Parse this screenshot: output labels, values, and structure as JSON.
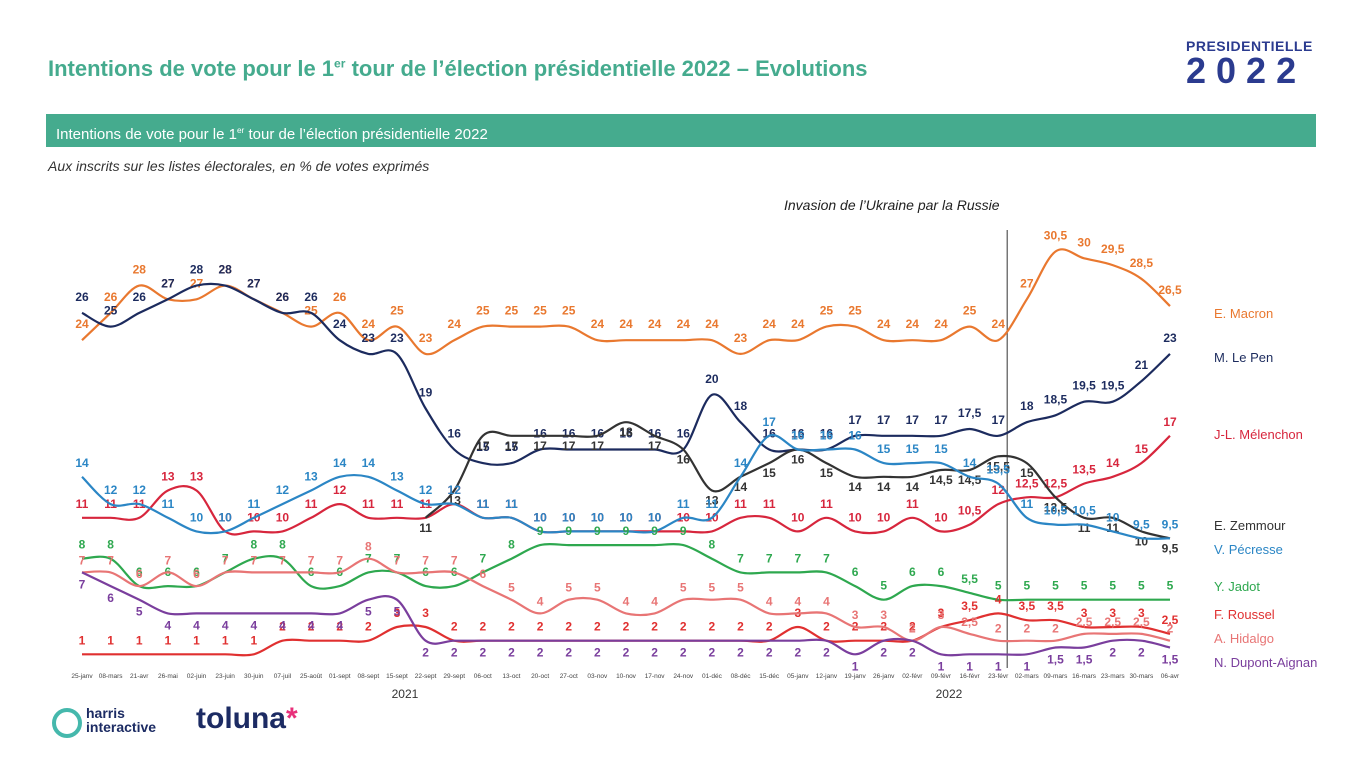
{
  "header": {
    "title_main": "Intentions de vote pour le 1",
    "title_sup": "er",
    "title_rest": " tour de l’élection présidentielle 2022 – Evolutions",
    "banner_main": "Intentions de vote pour le 1",
    "banner_sup": "er",
    "banner_rest": " tour de l’élection présidentielle 2022",
    "subtitle": "Aux inscrits sur les listes électorales, en % de votes exprimés",
    "logo_word": "PRESIDENTIELLE",
    "logo_year": "2022"
  },
  "footer": {
    "harris_line1": "harris",
    "harris_line2": "interactive",
    "toluna_text": "toluna",
    "toluna_star": "*"
  },
  "colors": {
    "accent": "#45ab8e",
    "macron": "#e9782f",
    "lepen": "#1c2b5e",
    "melenchon": "#d7263d",
    "zemmour": "#333333",
    "pecresse": "#2b86c5",
    "jadot": "#2ea84f",
    "roussel": "#e03030",
    "hidalgo": "#e87575",
    "dupont": "#7a3e9d"
  },
  "chart_data": {
    "type": "line",
    "title": "",
    "xlabel": "",
    "ylabel": "",
    "annotation": {
      "label": "Invasion de l’Ukraine par la Russie",
      "x": "23-févr"
    },
    "years": [
      {
        "label": "2021",
        "x": "15-sept"
      },
      {
        "label": "2022",
        "x": "09-févr"
      }
    ],
    "x": [
      "25-janv",
      "08-mars",
      "21-avr",
      "26-mai",
      "02-juin",
      "23-juin",
      "30-juin",
      "07-juil",
      "25-août",
      "01-sept",
      "08-sept",
      "15-sept",
      "22-sept",
      "29-sept",
      "06-oct",
      "13-oct",
      "20-oct",
      "27-oct",
      "03-nov",
      "10-nov",
      "17-nov",
      "24-nov",
      "01-déc",
      "08-déc",
      "15-déc",
      "05-janv",
      "12-janv",
      "19-janv",
      "26-janv",
      "02-févr",
      "09-févr",
      "16-févr",
      "23-févr",
      "02-mars",
      "09-mars",
      "16-mars",
      "23-mars",
      "30-mars",
      "06-avr"
    ],
    "series": [
      {
        "name": "E. Macron",
        "key": "macron",
        "values": [
          24,
          26,
          28,
          27,
          27,
          28,
          27,
          26,
          25,
          26,
          24,
          25,
          23,
          24,
          25,
          25,
          25,
          25,
          24,
          24,
          24,
          24,
          24,
          23,
          24,
          24,
          25,
          25,
          24,
          24,
          24,
          25,
          24,
          27,
          30.5,
          30,
          29.5,
          28.5,
          26.5
        ],
        "labels": [
          "24",
          "26",
          "28",
          "27",
          "27",
          "28",
          "27",
          "26",
          "25",
          "26",
          "24",
          "25",
          "23",
          "24",
          "25",
          "25",
          "25",
          "25",
          "24",
          "24",
          "24",
          "24",
          "24",
          "23",
          "24",
          "24",
          "25",
          "25",
          "24",
          "24",
          "24",
          "25",
          "24",
          "27",
          "30,5",
          "30",
          "29,5",
          "28,5",
          "26,5"
        ]
      },
      {
        "name": "M. Le Pen",
        "key": "lepen",
        "values": [
          26,
          25,
          26,
          27,
          28,
          28,
          27,
          26,
          26,
          24,
          23,
          23,
          19,
          16,
          15,
          15,
          16,
          16,
          16,
          16,
          16,
          16,
          20,
          18,
          16,
          16,
          16,
          17,
          17,
          17,
          17,
          17.5,
          17,
          18,
          18.5,
          19.5,
          19.5,
          21,
          23
        ],
        "labels": [
          "26",
          "25",
          "26",
          "27",
          "28",
          "28",
          "27",
          "26",
          "26",
          "24",
          "23",
          "23",
          "19",
          "16",
          "15",
          "15",
          "16",
          "16",
          "16",
          "16",
          "16",
          "16",
          "20",
          "18",
          "16",
          "16",
          "16",
          "17",
          "17",
          "17",
          "17",
          "17,5",
          "17",
          "18",
          "18,5",
          "19,5",
          "19,5",
          "21",
          "23"
        ]
      },
      {
        "name": "J-L. Mélenchon",
        "key": "melenchon",
        "values": [
          11,
          11,
          11,
          13,
          13,
          10,
          10,
          10,
          11,
          12,
          11,
          11,
          11,
          12,
          11,
          11,
          10,
          10,
          10,
          10,
          10,
          10,
          10,
          11,
          11,
          10,
          11,
          10,
          10,
          11,
          10,
          10.5,
          12,
          12.5,
          12.5,
          13.5,
          14,
          15,
          17
        ],
        "labels": [
          "11",
          "11",
          "11",
          "13",
          "13",
          "10",
          "10",
          "10",
          "11",
          "12",
          "11",
          "11",
          "11",
          "12",
          "11",
          "11",
          "10",
          "10",
          "10",
          "10",
          "10",
          "10",
          "10",
          "11",
          "11",
          "10",
          "11",
          "10",
          "10",
          "11",
          "10",
          "10,5",
          "12",
          "12,5",
          "12,5",
          "13,5",
          "14",
          "15",
          "17"
        ]
      },
      {
        "name": "E. Zemmour",
        "key": "zemmour",
        "values": [
          null,
          null,
          null,
          null,
          null,
          null,
          null,
          null,
          null,
          null,
          null,
          null,
          11,
          13,
          17,
          17,
          17,
          17,
          17,
          18,
          17,
          16,
          13,
          14,
          15,
          16,
          15,
          14,
          14,
          14,
          14.5,
          14.5,
          15.5,
          15,
          12.5,
          11,
          11,
          10,
          9.5
        ],
        "labels": [
          "",
          "",
          "",
          "",
          "",
          "",
          "",
          "",
          "",
          "",
          "",
          "",
          "11",
          "13",
          "17",
          "17",
          "17",
          "17",
          "17",
          "18",
          "17",
          "16",
          "13",
          "14",
          "15",
          "16",
          "15",
          "14",
          "14",
          "14",
          "14,5",
          "14,5",
          "15,5",
          "15",
          "12,5",
          "11",
          "11",
          "10",
          "9,5"
        ]
      },
      {
        "name": "V. Pécresse",
        "key": "pecresse",
        "values": [
          14,
          12,
          12,
          11,
          10,
          10,
          11,
          12,
          13,
          14,
          14,
          13,
          12,
          12,
          11,
          11,
          10,
          10,
          10,
          10,
          10,
          11,
          11,
          14,
          17,
          16,
          16,
          16,
          15,
          15,
          15,
          14,
          13.5,
          11,
          10.5,
          10.5,
          10,
          9.5,
          9.5
        ],
        "labels": [
          "14",
          "12",
          "12",
          "11",
          "10",
          "10",
          "11",
          "12",
          "13",
          "14",
          "14",
          "13",
          "12",
          "12",
          "11",
          "11",
          "10",
          "10",
          "10",
          "10",
          "10",
          "11",
          "11",
          "14",
          "17",
          "16",
          "16",
          "16",
          "15",
          "15",
          "15",
          "14",
          "13,5",
          "11",
          "10,5",
          "10,5",
          "10",
          "9,5",
          "9,5"
        ]
      },
      {
        "name": "Y. Jadot",
        "key": "jadot",
        "values": [
          8,
          8,
          6,
          6,
          6,
          7,
          8,
          8,
          6,
          6,
          7,
          7,
          6,
          6,
          7,
          8,
          9,
          9,
          9,
          9,
          9,
          9,
          8,
          7,
          7,
          7,
          7,
          6,
          5,
          6,
          6,
          5.5,
          5,
          5,
          5,
          5,
          5,
          5,
          5
        ],
        "labels": [
          "8",
          "8",
          "6",
          "6",
          "6",
          "7",
          "8",
          "8",
          "6",
          "6",
          "7",
          "7",
          "6",
          "6",
          "7",
          "8",
          "9",
          "9",
          "9",
          "9",
          "9",
          "9",
          "8",
          "7",
          "7",
          "7",
          "7",
          "6",
          "5",
          "6",
          "6",
          "5,5",
          "5",
          "5",
          "5",
          "5",
          "5",
          "5",
          "5"
        ]
      },
      {
        "name": "F. Roussel",
        "key": "roussel",
        "values": [
          1,
          1,
          1,
          1,
          1,
          1,
          1,
          2,
          2,
          2,
          2,
          3,
          3,
          2,
          2,
          2,
          2,
          2,
          2,
          2,
          2,
          2,
          2,
          2,
          2,
          3,
          2,
          2,
          2,
          2,
          3,
          3.5,
          4,
          3.5,
          3.5,
          3,
          3,
          3,
          2.5
        ],
        "labels": [
          "1",
          "1",
          "1",
          "1",
          "1",
          "1",
          "1",
          "2",
          "2",
          "2",
          "2",
          "3",
          "3",
          "2",
          "2",
          "2",
          "2",
          "2",
          "2",
          "2",
          "2",
          "2",
          "2",
          "2",
          "2",
          "3",
          "2",
          "2",
          "2",
          "2",
          "3",
          "3,5",
          "4",
          "3,5",
          "3,5",
          "3",
          "3",
          "3",
          "2,5"
        ]
      },
      {
        "name": "A. Hidalgo",
        "key": "hidalgo",
        "values": [
          7,
          7,
          6,
          7,
          6,
          7,
          7,
          7,
          7,
          7,
          8,
          7,
          7,
          7,
          6,
          5,
          4,
          5,
          5,
          4,
          4,
          5,
          5,
          5,
          4,
          4,
          4,
          3,
          3,
          2,
          3,
          2.5,
          2,
          2,
          2,
          2.5,
          2.5,
          2.5,
          2
        ],
        "labels": [
          "7",
          "7",
          "6",
          "7",
          "6",
          "7",
          "7",
          "7",
          "7",
          "7",
          "8",
          "7",
          "7",
          "7",
          "6",
          "5",
          "4",
          "5",
          "5",
          "4",
          "4",
          "5",
          "5",
          "5",
          "4",
          "4",
          "4",
          "3",
          "3",
          "2",
          "3",
          "2,5",
          "2",
          "2",
          "2",
          "2,5",
          "2,5",
          "2,5",
          "2"
        ]
      },
      {
        "name": "N. Dupont-Aignan",
        "key": "dupont",
        "values": [
          7,
          6,
          5,
          4,
          4,
          4,
          4,
          4,
          4,
          4,
          5,
          5,
          2,
          2,
          2,
          2,
          2,
          2,
          2,
          2,
          2,
          2,
          2,
          2,
          2,
          2,
          2,
          1,
          2,
          2,
          1,
          1,
          1,
          1,
          1.5,
          1.5,
          2,
          2,
          1.5
        ],
        "labels": [
          "7",
          "6",
          "5",
          "4",
          "4",
          "4",
          "4",
          "4",
          "4",
          "4",
          "5",
          "5",
          "2",
          "2",
          "2",
          "2",
          "2",
          "2",
          "2",
          "2",
          "2",
          "2",
          "2",
          "2",
          "2",
          "2",
          "2",
          "1",
          "2",
          "2",
          "1",
          "1",
          "1",
          "1",
          "1,5",
          "1,5",
          "2",
          "2",
          "1,5"
        ]
      }
    ]
  }
}
